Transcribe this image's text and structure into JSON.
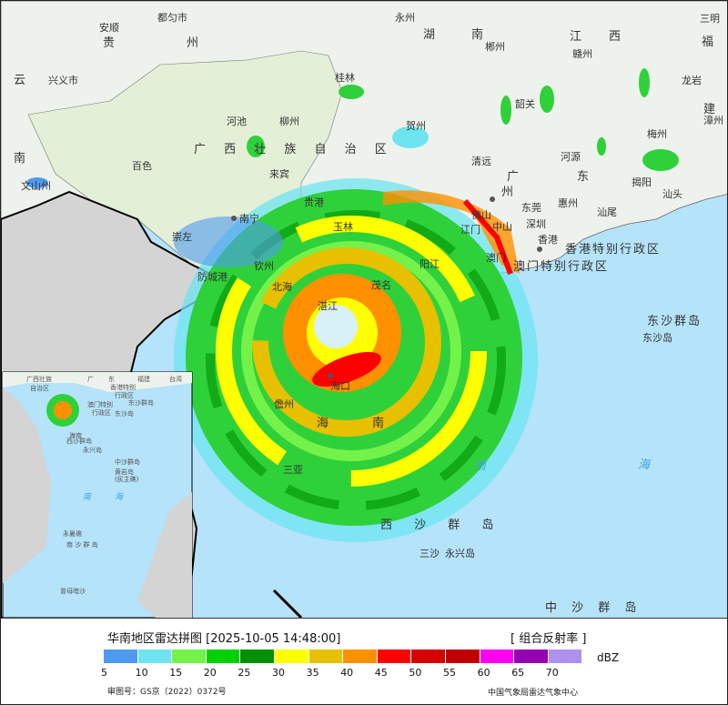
{
  "map": {
    "labels": [
      "都匀市",
      "安顺",
      "贵",
      "州",
      "云",
      "兴义市",
      "南",
      "文山州",
      "百色",
      "河池",
      "柳州",
      "桂林",
      "广 西 壮 族 自 治 区",
      "来宾",
      "贵港",
      "南宁",
      "崇左",
      "钦州",
      "玉林",
      "防城港",
      "北海",
      "湛江",
      "茂名",
      "海口",
      "儋州",
      "海",
      "南",
      "三亚",
      "阳江",
      "永州",
      "湖",
      "南",
      "郴州",
      "江",
      "西",
      "赣州",
      "三明",
      "福",
      "龙岩",
      "建",
      "漳州",
      "梅州",
      "韶关",
      "贺州",
      "清远",
      "广",
      "州",
      "东",
      "河源",
      "惠州",
      "东莞",
      "深圳",
      "香港",
      "揭阳",
      "汕头",
      "汕尾",
      "佛山",
      "中山",
      "江门",
      "澳门",
      "香港特别行政区",
      "澳门特别行政区",
      "东沙群岛",
      "东沙岛",
      "南",
      "海",
      "西 沙 群 岛",
      "三沙",
      "永兴岛",
      "中 沙 群 岛"
    ],
    "inset_labels": [
      "广西壮族",
      "自治区",
      "广",
      "东",
      "福建",
      "台湾",
      "香港特别",
      "行政区",
      "澳门特别",
      "行政区",
      "东沙群岛",
      "东沙岛",
      "海南",
      "西沙群岛",
      "永兴岛",
      "中沙群岛",
      "黄岩岛",
      "(民主礁)",
      "南",
      "海",
      "永暑礁",
      "南 沙 群 岛",
      "曾母暗沙"
    ]
  },
  "legend": {
    "title": "华南地区雷达拼图 [2025-10-05 14:48:00]",
    "product": "[ 组合反射率 ]",
    "unit": "dBZ",
    "colors": [
      "#4e9af0",
      "#6ee4f0",
      "#74f24a",
      "#00d200",
      "#009000",
      "#ffff00",
      "#e7c000",
      "#ff9000",
      "#ff0000",
      "#d60000",
      "#c00000",
      "#ff00f0",
      "#9600b4",
      "#ad90f0"
    ],
    "ticks": [
      "5",
      "10",
      "15",
      "20",
      "25",
      "30",
      "35",
      "40",
      "45",
      "50",
      "55",
      "60",
      "65",
      "70"
    ],
    "review_no": "审图号：GS京（2022）0372号",
    "organization": "中国气象局雷达气象中心"
  }
}
